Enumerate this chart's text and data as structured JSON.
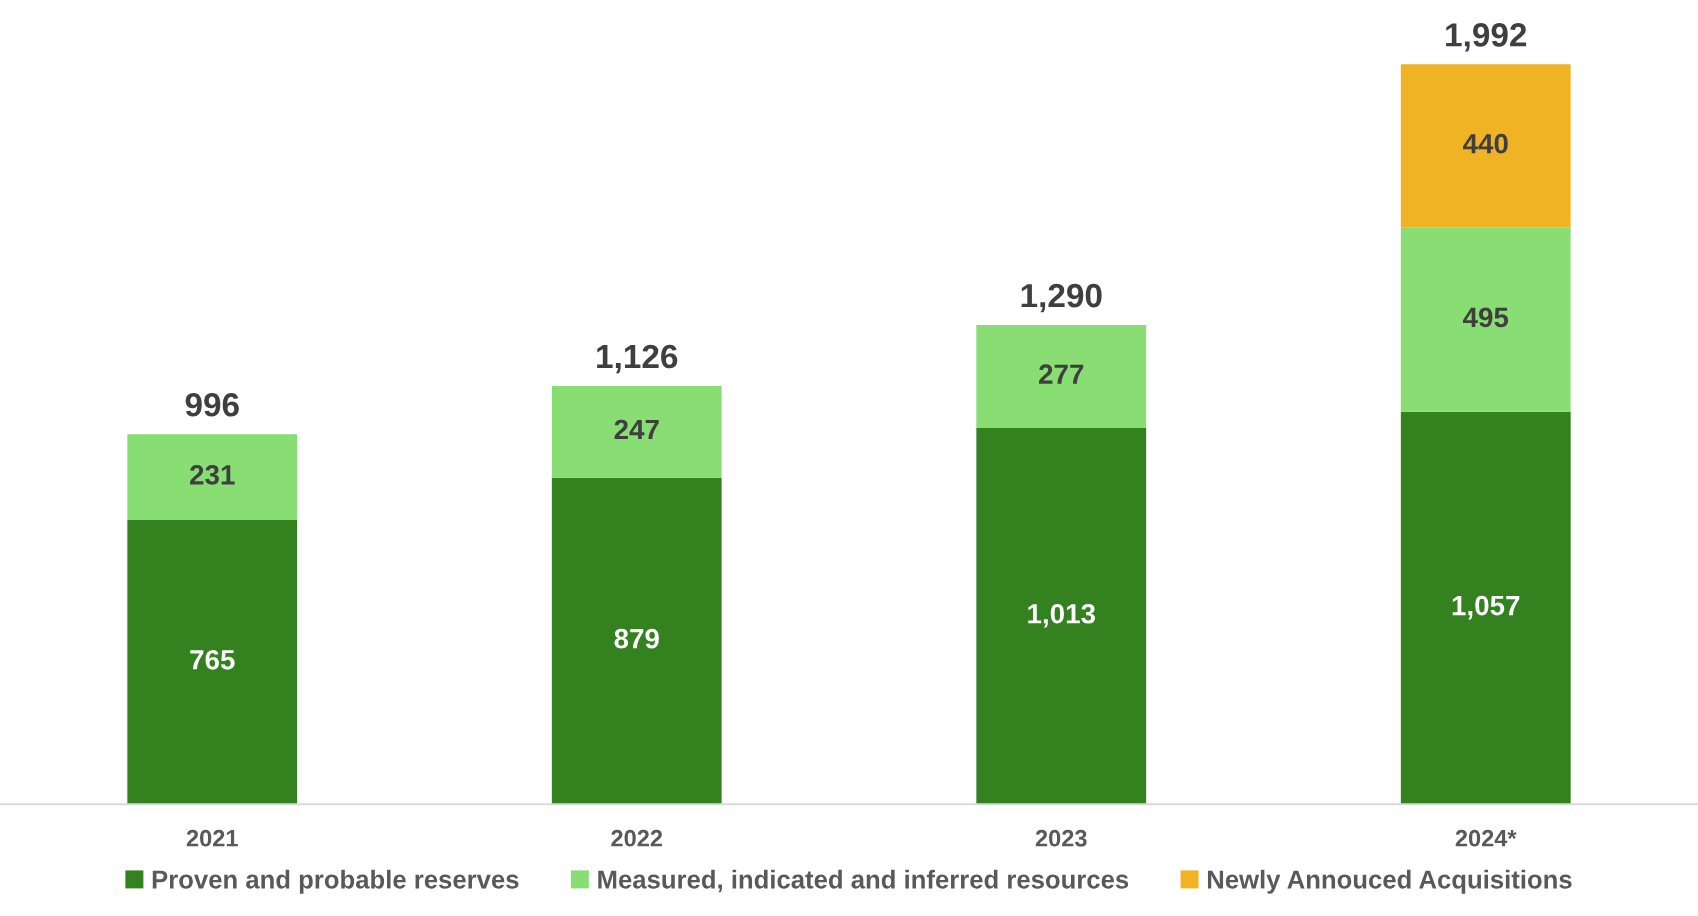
{
  "chart_data": {
    "type": "bar",
    "stacked": true,
    "categories": [
      "2021",
      "2022",
      "2023",
      "2024*"
    ],
    "series": [
      {
        "name": "Proven and probable reserves",
        "color": "#33821f",
        "values": [
          765,
          879,
          1013,
          1057
        ],
        "value_labels": [
          "765",
          "879",
          "1,013",
          "1,057"
        ]
      },
      {
        "name": "Measured, indicated and inferred resources",
        "color": "#88dd73",
        "values": [
          231,
          247,
          277,
          495
        ],
        "value_labels": [
          "231",
          "247",
          "277",
          "495"
        ]
      },
      {
        "name": "Newly Annouced Acquisitions",
        "color": "#f0b323",
        "values": [
          null,
          null,
          null,
          440
        ],
        "value_labels": [
          null,
          null,
          null,
          "440"
        ]
      }
    ],
    "totals": [
      "996",
      "1,126",
      "1,290",
      "1,992"
    ],
    "legend": "bottom",
    "grid": false
  }
}
